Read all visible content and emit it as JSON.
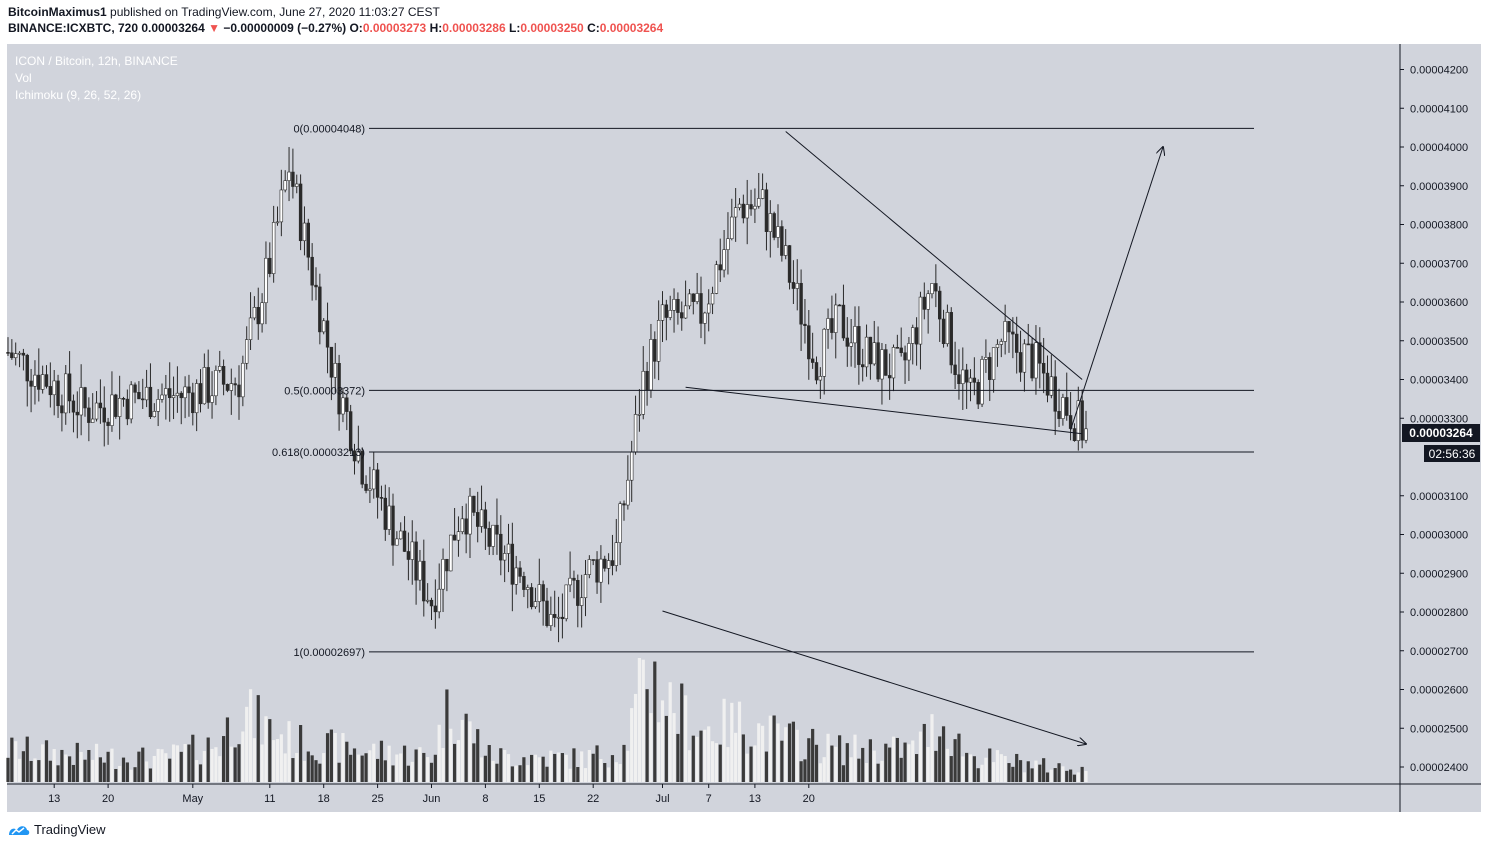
{
  "header": {
    "author": "BitcoinMaximus1",
    "published_text": "published on TradingView.com, June 27, 2020 11:03:27 CEST",
    "symbol": "BINANCE:ICXBTC, 720",
    "price": "0.00003264",
    "change_arrow": "▼",
    "change": "−0.00000009 (−0.27%)",
    "o_label": "O:",
    "o_value": "0.00003273",
    "h_label": "H:",
    "h_value": "0.00003286",
    "l_label": "L:",
    "l_value": "0.00003250",
    "c_label": "C:",
    "c_value": "0.00003264"
  },
  "legend": {
    "title": "ICON / Bitcoin, 12h, BINANCE",
    "vol": "Vol",
    "ichimoku": "Ichimoku (9, 26, 52, 26)"
  },
  "footer": {
    "brand": "TradingView",
    "logo_icon": "tradingview-logo-icon"
  },
  "colors": {
    "plot_bg": "#d1d4dc",
    "up": "#ffffff",
    "down": "#2a2a2a",
    "vol_up": "#f0f0f0",
    "vol_down": "#3a3a3a",
    "line": "#131722",
    "axis_text": "#131722",
    "price_label_bg": "#131722"
  },
  "chart_data": {
    "type": "candlestick",
    "yaxis": {
      "ticks": [
        "0.00004200",
        "0.00004100",
        "0.00004000",
        "0.00003900",
        "0.00003800",
        "0.00003700",
        "0.00003600",
        "0.00003500",
        "0.00003400",
        "0.00003300",
        "0.00003100",
        "0.00003000",
        "0.00002900",
        "0.00002800",
        "0.00002700",
        "0.00002600",
        "0.00002500",
        "0.00002400"
      ]
    },
    "xaxis": {
      "ticks": [
        "13",
        "20",
        "May",
        "11",
        "18",
        "25",
        "Jun",
        "8",
        "15",
        "22",
        "Jul",
        "7",
        "13",
        "20"
      ]
    },
    "last_price_label": "0.00003264",
    "countdown_label": "02:56:36",
    "fib_levels": [
      {
        "label": "0(0.00004048)",
        "value": 4.048e-05
      },
      {
        "label": "0.5(0.00003372)",
        "value": 3.372e-05
      },
      {
        "label": "0.618(0.00003213)",
        "value": 3.213e-05
      },
      {
        "label": "1(0.00002697)",
        "value": 2.697e-05
      }
    ],
    "price_anchors": [
      [
        0,
        3.47e-05
      ],
      [
        10,
        3.4e-05
      ],
      [
        20,
        3.32e-05
      ],
      [
        30,
        3.35e-05
      ],
      [
        45,
        3.36e-05
      ],
      [
        60,
        3.4e-05
      ],
      [
        68,
        3.7e-05
      ],
      [
        73,
        3.95e-05
      ],
      [
        78,
        3.72e-05
      ],
      [
        85,
        3.4e-05
      ],
      [
        92,
        3.18e-05
      ],
      [
        100,
        3.02e-05
      ],
      [
        110,
        2.83e-05
      ],
      [
        118,
        3.07e-05
      ],
      [
        126,
        2.97e-05
      ],
      [
        134,
        2.9e-05
      ],
      [
        142,
        2.76e-05
      ],
      [
        150,
        2.9e-05
      ],
      [
        158,
        2.96e-05
      ],
      [
        165,
        3.4e-05
      ],
      [
        170,
        3.55e-05
      ],
      [
        180,
        3.57e-05
      ],
      [
        190,
        3.85e-05
      ],
      [
        196,
        3.85e-05
      ],
      [
        202,
        3.7e-05
      ],
      [
        210,
        3.45e-05
      ],
      [
        216,
        3.55e-05
      ],
      [
        224,
        3.45e-05
      ],
      [
        232,
        3.42e-05
      ],
      [
        240,
        3.65e-05
      ],
      [
        246,
        3.45e-05
      ],
      [
        250,
        3.35e-05
      ],
      [
        258,
        3.5e-05
      ],
      [
        266,
        3.45e-05
      ],
      [
        272,
        3.37e-05
      ],
      [
        280,
        3.26e-05
      ]
    ],
    "volume_anchors": [
      [
        0,
        0.25
      ],
      [
        20,
        0.2
      ],
      [
        40,
        0.18
      ],
      [
        55,
        0.3
      ],
      [
        60,
        0.55
      ],
      [
        68,
        0.4
      ],
      [
        75,
        0.3
      ],
      [
        90,
        0.25
      ],
      [
        110,
        0.2
      ],
      [
        115,
        0.6
      ],
      [
        125,
        0.2
      ],
      [
        150,
        0.18
      ],
      [
        160,
        0.25
      ],
      [
        166,
        0.85
      ],
      [
        172,
        0.6
      ],
      [
        180,
        0.4
      ],
      [
        190,
        0.45
      ],
      [
        200,
        0.35
      ],
      [
        215,
        0.25
      ],
      [
        235,
        0.25
      ],
      [
        242,
        0.45
      ],
      [
        250,
        0.2
      ],
      [
        270,
        0.12
      ],
      [
        280,
        0.1
      ]
    ],
    "trendlines": [
      {
        "from": [
          202,
          4.04e-05
        ],
        "to": [
          279,
          3.4e-05
        ]
      },
      {
        "from": [
          176,
          3.38e-05
        ],
        "to": [
          279,
          3.26e-05
        ]
      },
      {
        "from": [
          276,
          3.27e-05
        ],
        "to": [
          300,
          4e-05
        ],
        "arrow": true
      }
    ],
    "volume_trend": {
      "from": [
        170,
        0.95
      ],
      "to": [
        280,
        0.4
      ],
      "arrow": true
    }
  }
}
